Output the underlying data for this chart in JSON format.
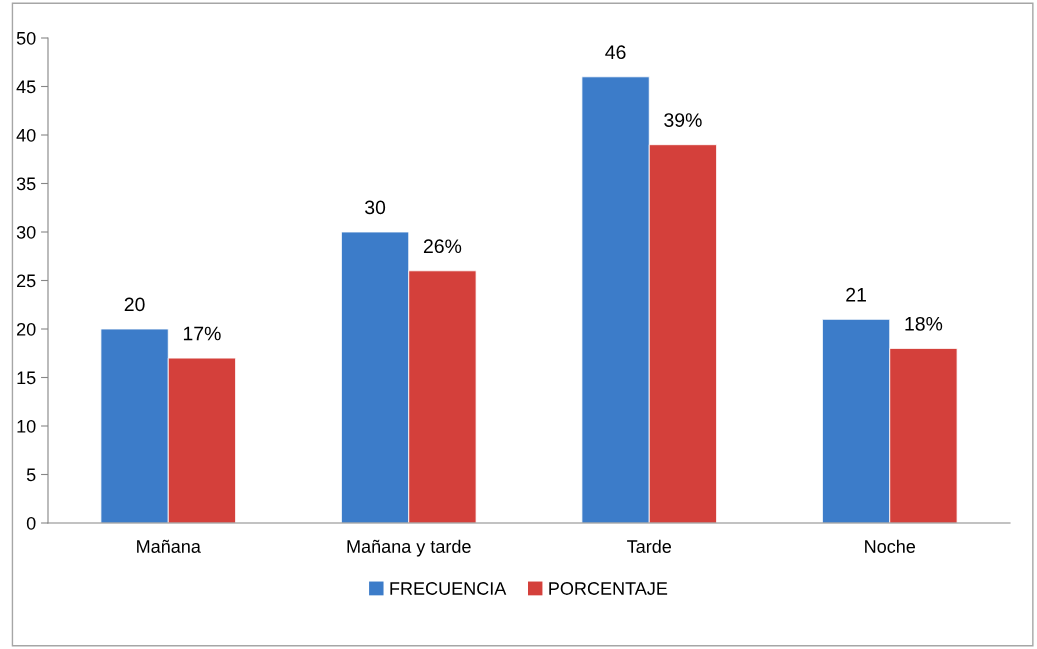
{
  "chart_data": {
    "type": "bar",
    "categories": [
      "Mañana",
      "Mañana y tarde",
      "Tarde",
      "Noche"
    ],
    "series": [
      {
        "name": "FRECUENCIA",
        "color": "#3c7cc9",
        "values": [
          20,
          30,
          46,
          21
        ],
        "value_labels": [
          "20",
          "30",
          "46",
          "21"
        ]
      },
      {
        "name": "PORCENTAJE",
        "color": "#d4403b",
        "values": [
          17,
          26,
          39,
          18
        ],
        "value_labels": [
          "17%",
          "26%",
          "39%",
          "18%"
        ]
      }
    ],
    "ylim": [
      0,
      50
    ],
    "yticks": [
      0,
      5,
      10,
      15,
      20,
      25,
      30,
      35,
      40,
      45,
      50
    ],
    "grid": false,
    "legend": "bottom"
  }
}
